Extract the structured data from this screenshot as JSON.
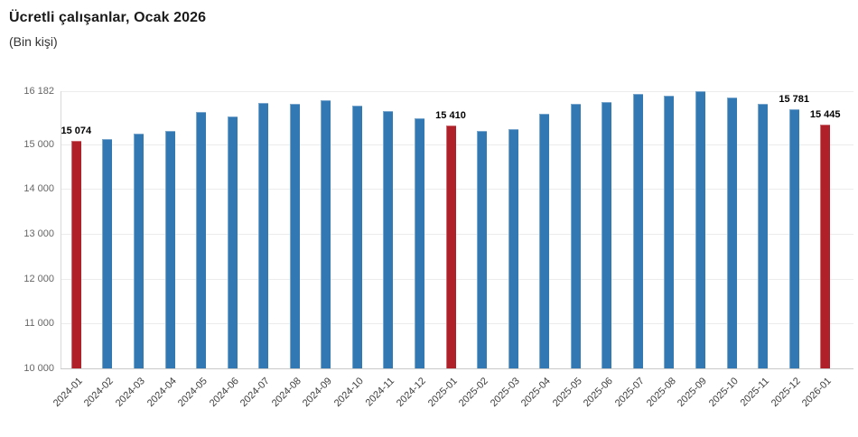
{
  "header": {
    "title": "Ücretli çalışanlar, Ocak 2026",
    "subtitle": "(Bin kişi)"
  },
  "colors": {
    "bar_blue": "#3279b3",
    "bar_red": "#b02028",
    "grid": "#ececec",
    "y_axis_line": "#d9d9d9",
    "x_axis_line": "#c9c9c9",
    "y_tick_label": "#666666",
    "x_tick_label": "#3d3d3d",
    "data_label": "#000000"
  },
  "chart_data": {
    "type": "bar",
    "title": "Ücretli çalışanlar, Ocak 2026",
    "subtitle": "(Bin kişi)",
    "xlabel": "",
    "ylabel": "",
    "legend": "none",
    "grid": "horizontal-faint",
    "ylim": [
      10000,
      16182
    ],
    "yticks": [
      {
        "value": 16182,
        "label": "16 182"
      },
      {
        "value": 15000,
        "label": "15 000"
      },
      {
        "value": 14000,
        "label": "14 000"
      },
      {
        "value": 13000,
        "label": "13 000"
      },
      {
        "value": 12000,
        "label": "12 000"
      },
      {
        "value": 11000,
        "label": "11 000"
      },
      {
        "value": 10000,
        "label": "10 000"
      }
    ],
    "categories": [
      "2024-01",
      "2024-02",
      "2024-03",
      "2024-04",
      "2024-05",
      "2024-06",
      "2024-07",
      "2024-08",
      "2024-09",
      "2024-10",
      "2024-11",
      "2024-12",
      "2025-01",
      "2025-02",
      "2025-03",
      "2025-04",
      "2025-05",
      "2025-06",
      "2025-07",
      "2025-08",
      "2025-09",
      "2025-10",
      "2025-11",
      "2025-12",
      "2026-01"
    ],
    "values": [
      15074,
      15125,
      15230,
      15295,
      15710,
      15610,
      15915,
      15900,
      15990,
      15865,
      15745,
      15585,
      15410,
      15295,
      15340,
      15680,
      15905,
      15935,
      16120,
      16090,
      16182,
      16045,
      15900,
      15781,
      15445
    ],
    "highlight_indices": [
      0,
      12,
      24
    ],
    "data_labels": [
      {
        "index": 0,
        "text": "15 074"
      },
      {
        "index": 12,
        "text": "15 410"
      },
      {
        "index": 23,
        "text": "15 781"
      },
      {
        "index": 24,
        "text": "15 445"
      }
    ]
  }
}
